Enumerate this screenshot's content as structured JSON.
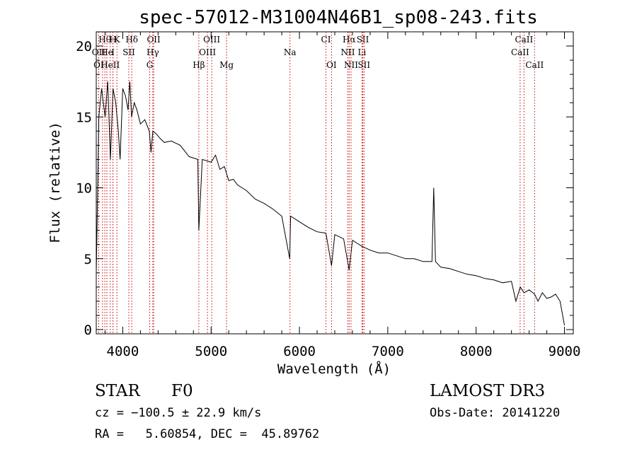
{
  "chart_data": {
    "type": "line",
    "title": "spec-57012-M31004N46B1_sp08-243.fits",
    "xlabel": "Wavelength (Å)",
    "ylabel": "Flux (relative)",
    "xlim": [
      3700,
      9100
    ],
    "ylim": [
      -0.3,
      21
    ],
    "xticks": [
      4000,
      5000,
      6000,
      7000,
      8000,
      9000
    ],
    "yticks": [
      0,
      5,
      10,
      15,
      20
    ],
    "spectrum": {
      "name": "flux",
      "x": [
        3700,
        3730,
        3760,
        3800,
        3830,
        3860,
        3890,
        3920,
        3950,
        3970,
        4000,
        4030,
        4060,
        4080,
        4100,
        4130,
        4160,
        4200,
        4250,
        4300,
        4320,
        4340,
        4380,
        4420,
        4470,
        4550,
        4650,
        4750,
        4850,
        4861,
        4900,
        5000,
        5050,
        5100,
        5150,
        5200,
        5250,
        5300,
        5400,
        5500,
        5600,
        5700,
        5800,
        5890,
        5900,
        6000,
        6100,
        6200,
        6300,
        6363,
        6400,
        6500,
        6563,
        6600,
        6700,
        6800,
        6900,
        7000,
        7100,
        7200,
        7300,
        7400,
        7500,
        7520,
        7540,
        7600,
        7700,
        7800,
        7900,
        8000,
        8100,
        8200,
        8300,
        8400,
        8450,
        8500,
        8542,
        8600,
        8662,
        8700,
        8750,
        8800,
        8850,
        8900,
        8950,
        9000
      ],
      "y": [
        4,
        15,
        17,
        15,
        17.5,
        12,
        17,
        16,
        14,
        12,
        17,
        16.5,
        15.5,
        17.5,
        15,
        16,
        15.5,
        14.5,
        14.8,
        14,
        12.5,
        14,
        13.8,
        13.5,
        13.2,
        13.3,
        13,
        12.2,
        12,
        7,
        12,
        11.8,
        12.3,
        11.3,
        11.5,
        10.5,
        10.6,
        10.2,
        9.8,
        9.2,
        8.9,
        8.5,
        8,
        5,
        8,
        7.6,
        7.2,
        6.9,
        6.8,
        4.5,
        6.7,
        6.4,
        4.2,
        6.3,
        5.9,
        5.6,
        5.4,
        5.4,
        5.2,
        5,
        5,
        4.8,
        4.8,
        10,
        4.8,
        4.4,
        4.3,
        4.1,
        3.9,
        3.8,
        3.6,
        3.5,
        3.3,
        3.4,
        2,
        3,
        2.6,
        2.8,
        2.5,
        2,
        2.6,
        2.2,
        2.3,
        2.5,
        2,
        0.3
      ]
    },
    "line_markers": [
      {
        "label": "Hθ",
        "x": 3797,
        "row": 0
      },
      {
        "label": "H",
        "x": 3889,
        "row": 0
      },
      {
        "label": "K",
        "x": 3934,
        "row": 0
      },
      {
        "label": "Hδ",
        "x": 4102,
        "row": 0
      },
      {
        "label": "OII",
        "x": 4350,
        "row": 0
      },
      {
        "label": "OIII",
        "x": 5007,
        "row": 0
      },
      {
        "label": "CI",
        "x": 6300,
        "row": 0
      },
      {
        "label": "Hα",
        "x": 6563,
        "row": 0
      },
      {
        "label": "SII",
        "x": 6717,
        "row": 0
      },
      {
        "label": "CaII",
        "x": 8542,
        "row": 0
      },
      {
        "label": "OII",
        "x": 3727,
        "row": 1
      },
      {
        "label": "He",
        "x": 3820,
        "row": 1
      },
      {
        "label": "I",
        "x": 3889,
        "row": 1
      },
      {
        "label": "SII",
        "x": 4069,
        "row": 1
      },
      {
        "label": "Hγ",
        "x": 4340,
        "row": 1
      },
      {
        "label": "OIII",
        "x": 4959,
        "row": 1
      },
      {
        "label": "Na",
        "x": 5893,
        "row": 1
      },
      {
        "label": "NII",
        "x": 6548,
        "row": 1
      },
      {
        "label": "Li",
        "x": 6708,
        "row": 1
      },
      {
        "label": "CaII",
        "x": 8498,
        "row": 1
      },
      {
        "label": "OI",
        "x": 3727,
        "row": 2
      },
      {
        "label": "I",
        "x": 3771,
        "row": 2
      },
      {
        "label": "HeII",
        "x": 3858,
        "row": 2
      },
      {
        "label": "G",
        "x": 4305,
        "row": 2
      },
      {
        "label": "Hβ",
        "x": 4861,
        "row": 2
      },
      {
        "label": "Mg",
        "x": 5175,
        "row": 2
      },
      {
        "label": "OI",
        "x": 6363,
        "row": 2
      },
      {
        "label": "NII",
        "x": 6584,
        "row": 2
      },
      {
        "label": "SII",
        "x": 6731,
        "row": 2
      },
      {
        "label": "CaII",
        "x": 8662,
        "row": 2
      }
    ]
  },
  "info": {
    "class_label": "STAR",
    "subclass": "F0",
    "survey": "LAMOST DR3",
    "redshift": "cz = −100.5 ± 22.9 km/s",
    "obs_date": "Obs-Date: 20141220",
    "coords": "RA =   5.60854, DEC =  45.89762"
  },
  "colors": {
    "spectrum": "#000000",
    "line_markers": "#cc0000",
    "axes": "#000000"
  }
}
